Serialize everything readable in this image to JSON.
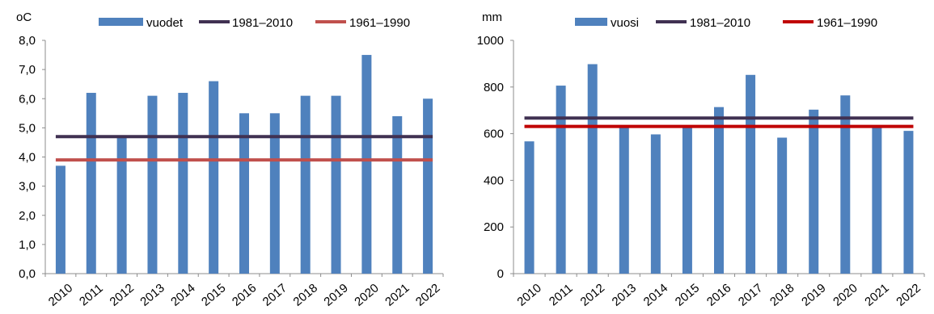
{
  "chart_data": [
    {
      "type": "bar",
      "unit_label": "oC",
      "categories": [
        "2010",
        "2011",
        "2012",
        "2013",
        "2014",
        "2015",
        "2016",
        "2017",
        "2018",
        "2019",
        "2020",
        "2021",
        "2022"
      ],
      "series": [
        {
          "name": "vuodet",
          "kind": "bar",
          "color": "#4f81bd",
          "values": [
            3.7,
            6.2,
            4.7,
            6.1,
            6.2,
            6.6,
            5.5,
            5.5,
            6.1,
            6.1,
            7.5,
            5.4,
            6.0
          ]
        },
        {
          "name": "1981–2010",
          "kind": "line",
          "color": "#403152",
          "value": 4.7
        },
        {
          "name": "1961–1990",
          "kind": "line",
          "color": "#c0504d",
          "value": 3.9
        }
      ],
      "ylim": [
        0,
        8
      ],
      "yticks": [
        "0,0",
        "1,0",
        "2,0",
        "3,0",
        "4,0",
        "5,0",
        "6,0",
        "7,0",
        "8,0"
      ],
      "legend": "top",
      "grid": false
    },
    {
      "type": "bar",
      "unit_label": "mm",
      "categories": [
        "2010",
        "2011",
        "2012",
        "2013",
        "2014",
        "2015",
        "2016",
        "2017",
        "2018",
        "2019",
        "2020",
        "2021",
        "2022"
      ],
      "series": [
        {
          "name": "vuosi",
          "kind": "bar",
          "color": "#4f81bd",
          "values": [
            567,
            806,
            898,
            625,
            597,
            633,
            714,
            852,
            583,
            703,
            764,
            628,
            612
          ]
        },
        {
          "name": "1981–2010",
          "kind": "line",
          "color": "#403152",
          "value": 667
        },
        {
          "name": "1961–1990",
          "kind": "line",
          "color": "#c00000",
          "value": 631
        }
      ],
      "ylim": [
        0,
        1000
      ],
      "yticks": [
        "0",
        "200",
        "400",
        "600",
        "800",
        "1000"
      ],
      "legend": "top",
      "grid": false
    }
  ]
}
